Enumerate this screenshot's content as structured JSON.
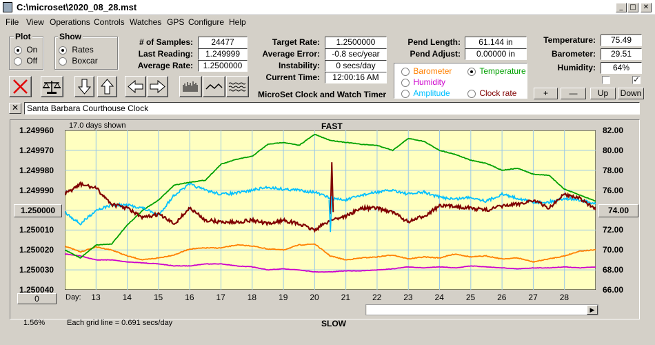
{
  "window": {
    "title": "C:\\microset\\2020_08_28.mst"
  },
  "menu": [
    "File",
    "View",
    "Operations",
    "Controls",
    "Watches",
    "GPS",
    "Configure",
    "Help"
  ],
  "plot_group": {
    "label": "Plot",
    "options": [
      "On",
      "Off"
    ],
    "selected": "On"
  },
  "show_group": {
    "label": "Show",
    "options": [
      "Rates",
      "Boxcar"
    ],
    "selected": "Rates"
  },
  "stats": {
    "samples_label": "# of Samples:",
    "samples": "24477",
    "last_label": "Last Reading:",
    "last": "1.249999",
    "avg_rate_label": "Average Rate:",
    "avg_rate": "1.2500000",
    "target_label": "Target Rate:",
    "target": "1.2500000",
    "avg_err_label": "Average Error:",
    "avg_err": "-0.8 sec/year",
    "instab_label": "Instability:",
    "instab": "0 secs/day",
    "time_label": "Current Time:",
    "time": "12:00:16 AM",
    "pend_len_label": "Pend Length:",
    "pend_len": "61.144 in",
    "pend_adj_label": "Pend Adjust:",
    "pend_adj": "0.00000 in",
    "temp_label": "Temperature:",
    "temp": "75.49",
    "baro_label": "Barometer:",
    "baro": "29.51",
    "hum_label": "Humidity:",
    "hum": "64%"
  },
  "app_name": "MicroSet Clock and Watch Timer",
  "sensor_options": [
    {
      "label": "Barometer",
      "color": "#ff8000",
      "selected": false
    },
    {
      "label": "Temperature",
      "color": "#00a000",
      "selected": true
    },
    {
      "label": "Humidity",
      "color": "#cc00cc",
      "selected": false
    },
    {
      "label": "Amplitude",
      "color": "#00c0ff",
      "selected": false
    },
    {
      "label": "Clock rate",
      "color": "#800000",
      "selected": false
    }
  ],
  "sensor_buttons": [
    "+",
    "—",
    "Up",
    "Down"
  ],
  "checks": [
    false,
    true
  ],
  "clock_name": "Santa Barbara Courthouse Clock",
  "plot": {
    "days_shown": "17.0 days shown",
    "top_label": "FAST",
    "bottom_label": "SLOW",
    "grid_note": "Each grid line = 0.691 secs/day",
    "day_label": "Day:",
    "zoom": "1.56%",
    "left_btn": "1.250000",
    "right_btn": "74.00",
    "bottom_btn": "0",
    "left_ticks": [
      "1.249960",
      "1.249970",
      "1.249980",
      "1.249990",
      "1.250000",
      "1.250010",
      "1.250020",
      "1.250030",
      "1.250040"
    ],
    "right_ticks": [
      "82.00",
      "80.00",
      "78.00",
      "76.00",
      "74.00",
      "72.00",
      "70.00",
      "68.00",
      "66.00"
    ],
    "days": [
      "13",
      "14",
      "15",
      "16",
      "17",
      "18",
      "19",
      "20",
      "21",
      "22",
      "23",
      "24",
      "25",
      "26",
      "27",
      "28"
    ]
  },
  "chart_data": {
    "type": "line",
    "x_label": "Day:",
    "x": [
      12.0,
      12.5,
      13.0,
      13.5,
      14.0,
      14.5,
      15.0,
      15.5,
      16.0,
      16.5,
      17.0,
      17.5,
      18.0,
      18.5,
      19.0,
      19.5,
      20.0,
      20.5,
      21.0,
      21.5,
      22.0,
      22.5,
      23.0,
      23.5,
      24.0,
      24.5,
      25.0,
      25.5,
      26.0,
      26.5,
      27.0,
      27.5,
      28.0,
      28.5,
      29.0
    ],
    "left_axis": {
      "ylim": [
        1.25004,
        1.24996
      ],
      "note": "rate, inverted (FAST on top)"
    },
    "right_axis": {
      "ylim": [
        66,
        82
      ]
    },
    "series": [
      {
        "name": "Clock rate",
        "color": "#800000",
        "axis": "left",
        "values": [
          1.249992,
          1.249987,
          1.249989,
          1.249997,
          1.249999,
          1.250004,
          1.250002,
          1.250007,
          1.249999,
          1.250005,
          1.250006,
          1.250006,
          1.250005,
          1.250007,
          1.250005,
          1.250007,
          1.25001,
          1.250005,
          1.250003,
          1.249999,
          1.249999,
          1.250001,
          1.250006,
          1.250003,
          1.249998,
          1.249998,
          1.249999,
          1.25,
          1.249998,
          1.249997,
          1.249995,
          1.249999,
          1.249992,
          1.249994,
          1.25
        ]
      },
      {
        "name": "Temperature",
        "color": "#00a000",
        "axis": "right",
        "values": [
          70.0,
          69.2,
          70.5,
          70.6,
          72.5,
          74.0,
          75.0,
          76.5,
          76.8,
          77.0,
          78.6,
          79.1,
          79.4,
          80.6,
          80.8,
          80.5,
          81.6,
          81.0,
          80.8,
          80.6,
          80.5,
          80.0,
          81.2,
          80.9,
          80.0,
          79.6,
          79.0,
          78.7,
          78.0,
          78.2,
          77.6,
          77.5,
          76.1,
          75.5,
          74.9
        ]
      },
      {
        "name": "Amplitude",
        "color": "#00c0ff",
        "axis": "right",
        "values": [
          73.8,
          72.6,
          74.0,
          74.5,
          74.5,
          74.2,
          73.5,
          75.5,
          76.6,
          76.0,
          75.6,
          75.7,
          76.0,
          76.3,
          76.1,
          76.0,
          75.8,
          75.2,
          75.0,
          75.5,
          75.8,
          76.0,
          75.6,
          75.8,
          75.3,
          75.1,
          75.3,
          74.9,
          75.6,
          75.2,
          74.8,
          74.8,
          75.2,
          75.0,
          74.6
        ]
      },
      {
        "name": "Barometer",
        "color": "#ff8000",
        "axis": "right",
        "values": [
          70.4,
          69.8,
          70.3,
          70.0,
          69.4,
          69.0,
          69.2,
          69.5,
          70.1,
          70.2,
          70.2,
          70.5,
          70.4,
          70.1,
          70.0,
          70.5,
          70.6,
          69.4,
          69.0,
          69.2,
          69.3,
          69.5,
          69.1,
          69.3,
          69.2,
          69.6,
          69.3,
          69.4,
          69.1,
          69.2,
          68.8,
          69.1,
          69.4,
          69.9,
          70.0
        ]
      },
      {
        "name": "Humidity",
        "color": "#cc00cc",
        "axis": "right",
        "values": [
          69.6,
          69.4,
          69.0,
          69.0,
          68.8,
          68.7,
          68.6,
          68.4,
          68.4,
          68.6,
          68.6,
          68.4,
          68.3,
          68.0,
          68.1,
          68.0,
          67.8,
          67.8,
          67.9,
          67.9,
          68.0,
          68.1,
          68.3,
          68.2,
          68.3,
          68.2,
          68.4,
          68.3,
          68.2,
          68.1,
          68.2,
          68.2,
          68.3,
          68.2,
          68.3
        ]
      }
    ]
  }
}
